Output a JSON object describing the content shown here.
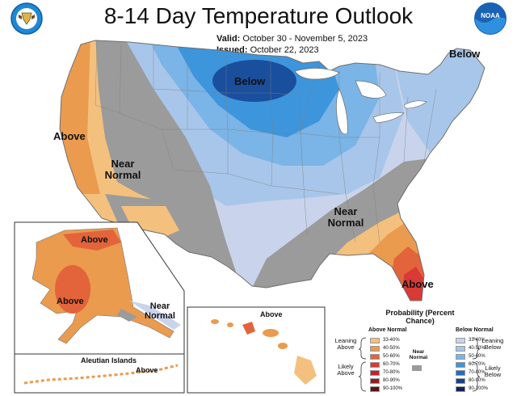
{
  "title": "8-14 Day Temperature Outlook",
  "valid_label": "Valid:",
  "valid_value": "October 30 - November 5, 2023",
  "issued_label": "Issued:",
  "issued_value": "October 22, 2023",
  "logos": {
    "left": {
      "name": "commerce-seal",
      "color": "#1e88d6"
    },
    "right": {
      "name": "noaa-logo",
      "text": "NOAA",
      "color": "#1a63b4"
    }
  },
  "region_labels": {
    "below_north": "Below",
    "below_northeast": "Below",
    "above_west": "Above",
    "near_normal_west": "Near Normal",
    "near_normal_southeast": "Near Normal",
    "above_florida": "Above",
    "alaska_above_north": "Above",
    "alaska_above_south": "Above",
    "alaska_near_normal": "Near Normal",
    "hawaii_above": "Above",
    "aleutian_title": "Aleutian Islands",
    "aleutian_above": "Above"
  },
  "legend": {
    "title": "Probability (Percent Chance)",
    "above_header": "Above Normal",
    "below_header": "Below Normal",
    "near_label": "Near Normal",
    "near_color": "#9b9b9b",
    "leaning_above": "Leaning Above",
    "likely_above": "Likely Above",
    "leaning_below": "Leaning Below",
    "likely_below": "Likely Below",
    "above": [
      {
        "range": "33-40%",
        "color": "#f3c17d"
      },
      {
        "range": "40-50%",
        "color": "#ea9b4e"
      },
      {
        "range": "50-60%",
        "color": "#e3643a"
      },
      {
        "range": "60-70%",
        "color": "#d83a36"
      },
      {
        "range": "70-80%",
        "color": "#bf232f"
      },
      {
        "range": "80-90%",
        "color": "#951b24"
      },
      {
        "range": "90-100%",
        "color": "#5e1218"
      }
    ],
    "below": [
      {
        "range": "33-40%",
        "color": "#c9d4ec"
      },
      {
        "range": "40-50%",
        "color": "#a8c6ea"
      },
      {
        "range": "50-60%",
        "color": "#7bb4e6"
      },
      {
        "range": "60-70%",
        "color": "#3d95dc"
      },
      {
        "range": "70-80%",
        "color": "#1f6ec2"
      },
      {
        "range": "80-90%",
        "color": "#1a3f8f"
      },
      {
        "range": "90-100%",
        "color": "#16205e"
      }
    ]
  }
}
